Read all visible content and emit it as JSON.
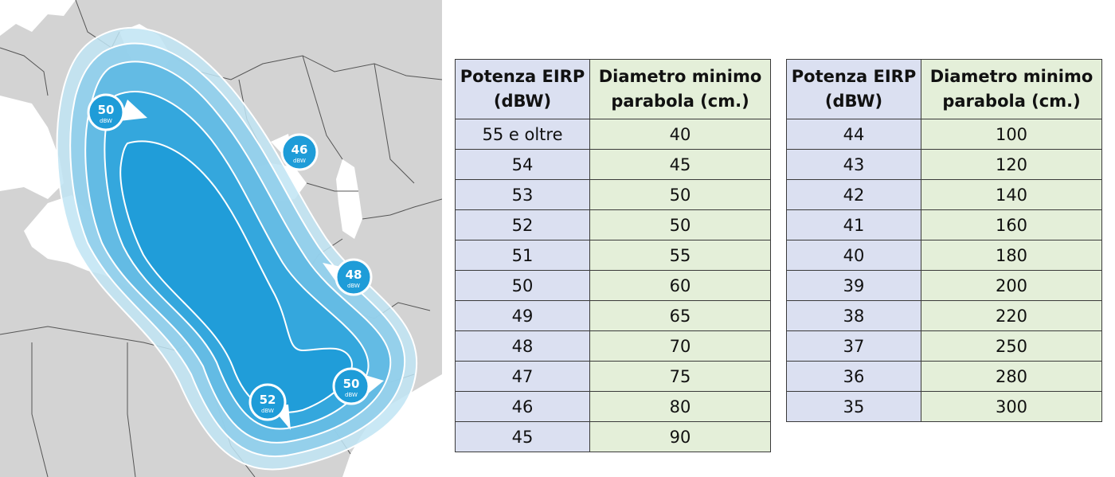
{
  "map": {
    "badges": [
      {
        "value": "50",
        "unit": "dBW"
      },
      {
        "value": "46",
        "unit": "dBW"
      },
      {
        "value": "48",
        "unit": "dBW"
      },
      {
        "value": "52",
        "unit": "dBW"
      },
      {
        "value": "50",
        "unit": "dBW"
      }
    ],
    "colors": {
      "land": "#d3d3d3",
      "sea": "#ffffff",
      "borders": "#555555",
      "beam_outer": "#bfe4f3",
      "beam_inner": "#1ea0da"
    }
  },
  "table1": {
    "header": {
      "col1": "Potenza EIRP (dBW)",
      "col2": "Diametro minimo parabola (cm.)"
    },
    "rows": [
      {
        "eirp": "55 e oltre",
        "diam": "40"
      },
      {
        "eirp": "54",
        "diam": "45"
      },
      {
        "eirp": "53",
        "diam": "50"
      },
      {
        "eirp": "52",
        "diam": "50"
      },
      {
        "eirp": "51",
        "diam": "55"
      },
      {
        "eirp": "50",
        "diam": "60"
      },
      {
        "eirp": "49",
        "diam": "65"
      },
      {
        "eirp": "48",
        "diam": "70"
      },
      {
        "eirp": "47",
        "diam": "75"
      },
      {
        "eirp": "46",
        "diam": "80"
      },
      {
        "eirp": "45",
        "diam": "90"
      }
    ]
  },
  "table2": {
    "header": {
      "col1": "Potenza EIRP (dBW)",
      "col2": "Diametro minimo parabola (cm.)"
    },
    "rows": [
      {
        "eirp": "44",
        "diam": "100"
      },
      {
        "eirp": "43",
        "diam": "120"
      },
      {
        "eirp": "42",
        "diam": "140"
      },
      {
        "eirp": "41",
        "diam": "160"
      },
      {
        "eirp": "40",
        "diam": "180"
      },
      {
        "eirp": "39",
        "diam": "200"
      },
      {
        "eirp": "38",
        "diam": "220"
      },
      {
        "eirp": "37",
        "diam": "250"
      },
      {
        "eirp": "36",
        "diam": "280"
      },
      {
        "eirp": "35",
        "diam": "300"
      }
    ]
  }
}
